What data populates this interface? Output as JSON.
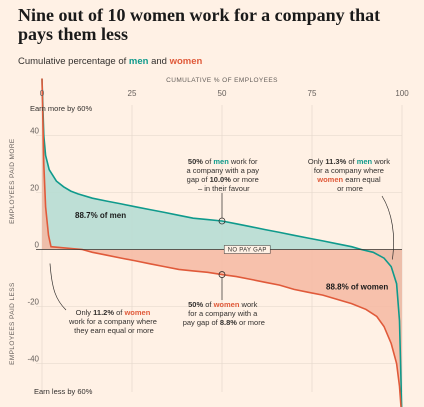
{
  "title": "Nine out of 10 women work for a company that pays them less",
  "subtitle": {
    "prefix": "Cumulative percentage of ",
    "men": "men",
    "and": " and ",
    "women": "women"
  },
  "colors": {
    "men": "#0f9a8c",
    "men_fill": "#b7ddd4",
    "women": "#e05a3a",
    "women_fill": "#f6b9a2",
    "background": "#fff1e5"
  },
  "chart_data": {
    "type": "area",
    "x_axis_title": "CUMULATIVE % OF EMPLOYEES",
    "y_axis_title_top": "EMPLOYEES PAID MORE",
    "y_axis_title_bottom": "EMPLOYEES PAID LESS",
    "xlim": [
      0,
      100
    ],
    "ylim": [
      -50,
      50
    ],
    "x_ticks": [
      "0",
      "25",
      "50",
      "75",
      "100"
    ],
    "y_ticks": [
      {
        "value": 40,
        "label": "40"
      },
      {
        "value": 20,
        "label": "20"
      },
      {
        "value": 0,
        "label": "0"
      },
      {
        "value": -20,
        "label": "-20"
      },
      {
        "value": -40,
        "label": "-40"
      }
    ],
    "top_label": "Earn more by 60%",
    "bottom_label": "Earn less by 60%",
    "zero_label": "NO PAY GAP",
    "series": [
      {
        "name": "men",
        "points": [
          [
            0,
            60
          ],
          [
            0.5,
            40
          ],
          [
            1,
            33
          ],
          [
            2,
            28
          ],
          [
            4,
            24
          ],
          [
            6,
            22
          ],
          [
            8,
            20.5
          ],
          [
            10,
            19.5
          ],
          [
            14,
            18
          ],
          [
            18,
            17
          ],
          [
            22,
            16
          ],
          [
            26,
            15
          ],
          [
            30,
            14
          ],
          [
            34,
            13
          ],
          [
            38,
            12
          ],
          [
            42,
            11
          ],
          [
            46,
            10.5
          ],
          [
            50,
            10
          ],
          [
            54,
            9
          ],
          [
            58,
            8
          ],
          [
            62,
            7
          ],
          [
            66,
            6
          ],
          [
            70,
            5
          ],
          [
            74,
            4
          ],
          [
            78,
            3
          ],
          [
            82,
            2
          ],
          [
            86,
            1
          ],
          [
            88.7,
            0
          ],
          [
            92,
            -1
          ],
          [
            95,
            -3
          ],
          [
            97,
            -6
          ],
          [
            98.5,
            -12
          ],
          [
            99.3,
            -25
          ],
          [
            100,
            -60
          ]
        ]
      },
      {
        "name": "women",
        "points": [
          [
            0,
            60
          ],
          [
            0.5,
            30
          ],
          [
            1,
            15
          ],
          [
            1.8,
            5
          ],
          [
            2.5,
            1
          ],
          [
            11.2,
            0
          ],
          [
            14,
            -1
          ],
          [
            18,
            -2
          ],
          [
            22,
            -3
          ],
          [
            26,
            -4
          ],
          [
            30,
            -5
          ],
          [
            34,
            -6
          ],
          [
            38,
            -7
          ],
          [
            42,
            -7.5
          ],
          [
            46,
            -8
          ],
          [
            50,
            -8.8
          ],
          [
            54,
            -9.5
          ],
          [
            58,
            -10.5
          ],
          [
            62,
            -11.5
          ],
          [
            66,
            -12.5
          ],
          [
            70,
            -14
          ],
          [
            74,
            -15
          ],
          [
            78,
            -16
          ],
          [
            82,
            -17.5
          ],
          [
            86,
            -19
          ],
          [
            90,
            -21
          ],
          [
            93,
            -23.5
          ],
          [
            95,
            -27
          ],
          [
            97,
            -33
          ],
          [
            98.5,
            -40
          ],
          [
            99.3,
            -48
          ],
          [
            100,
            -60
          ]
        ]
      }
    ],
    "area_labels": [
      {
        "text": "88.7% of men"
      },
      {
        "text": "88.8% of women"
      }
    ],
    "annotations": {
      "men_median": {
        "l1": [
          "50%",
          " of ",
          "men",
          " work for"
        ],
        "l2": "a company with a pay",
        "l3": [
          "gap of ",
          "10.0%",
          " or  more"
        ],
        "l4": "– in their favour"
      },
      "men_equal": {
        "l1": [
          "Only ",
          "11.3%",
          " of ",
          "men",
          " work"
        ],
        "l2": "for a company where",
        "l3": [
          "women",
          " earn equal"
        ],
        "l4": "or more"
      },
      "women_equal": {
        "l1": [
          "Only ",
          "11.2%",
          " of ",
          "women"
        ],
        "l2": "work for a company where",
        "l3": "they earn equal or more"
      },
      "women_median": {
        "l1": [
          "50%",
          " of ",
          "women",
          " work"
        ],
        "l2": "for a company with a",
        "l3": [
          "pay gap of ",
          "8.8%",
          " or more"
        ]
      }
    }
  }
}
